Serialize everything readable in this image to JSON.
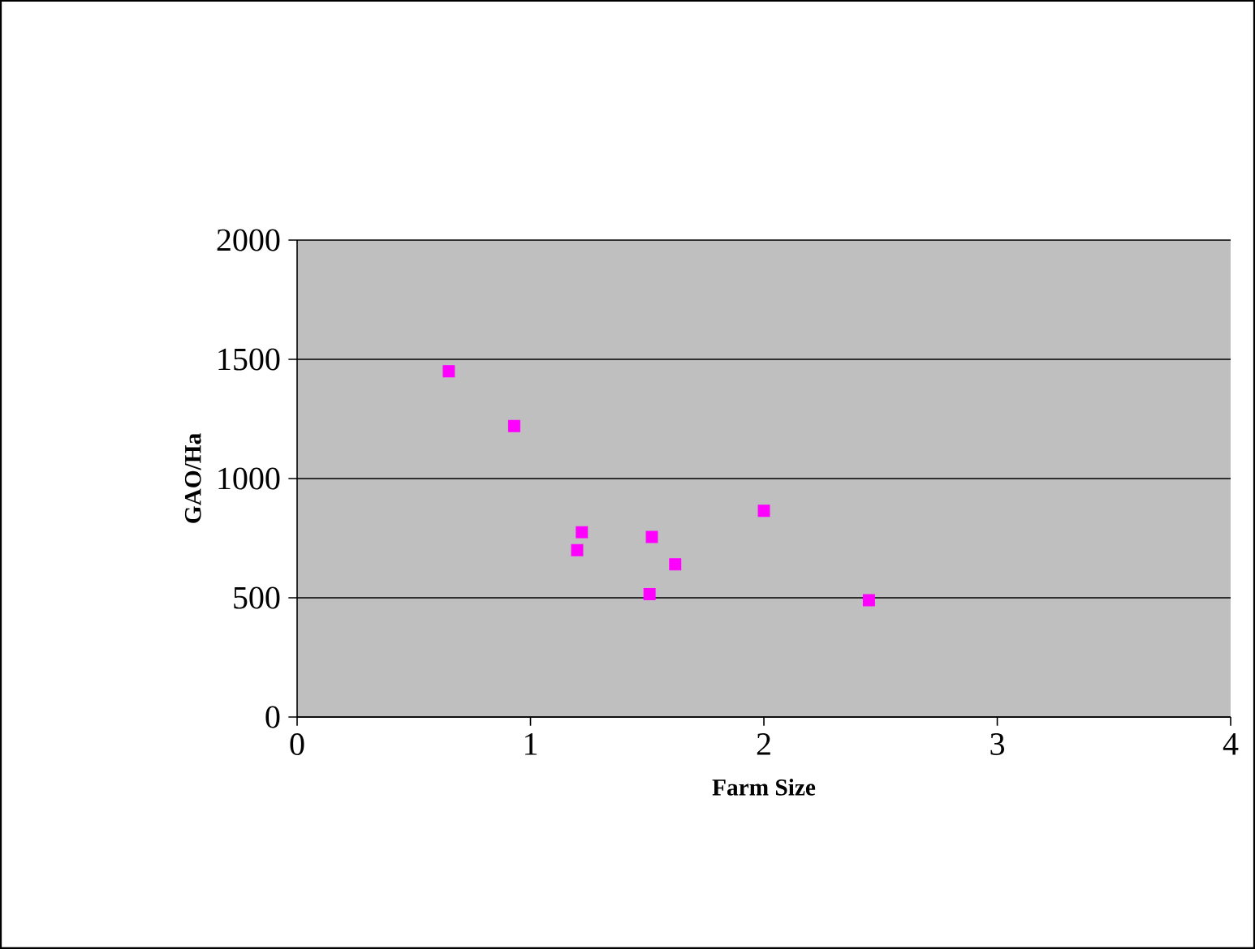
{
  "chart_data": {
    "type": "scatter",
    "xlabel": "Farm Size",
    "ylabel": "GAO/Ha",
    "x": [
      0.65,
      0.93,
      1.22,
      1.2,
      1.52,
      1.51,
      1.62,
      2.0,
      2.45
    ],
    "values": [
      1450,
      1220,
      775,
      700,
      755,
      515,
      640,
      865,
      490
    ],
    "color": "#ff00ff",
    "marker": "square",
    "grid": "y",
    "xlim": [
      0,
      4
    ],
    "ylim": [
      0,
      2000
    ],
    "xticks": [
      0,
      1,
      2,
      3,
      4
    ],
    "yticks": [
      0,
      500,
      1000,
      1500,
      2000
    ]
  }
}
